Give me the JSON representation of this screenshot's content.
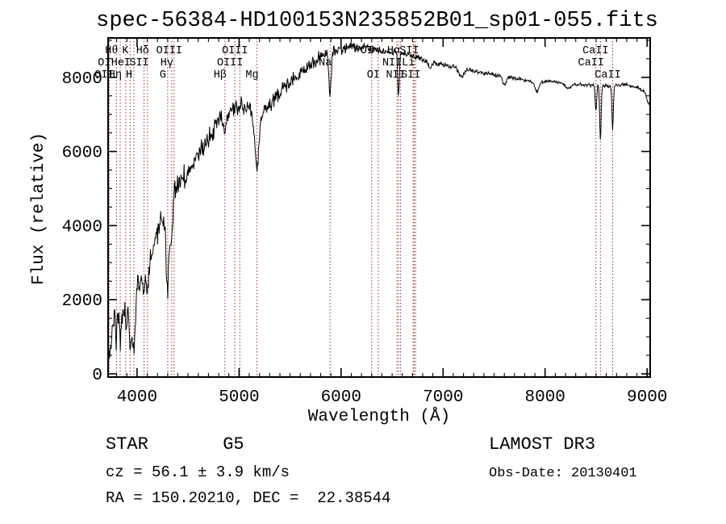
{
  "title": "spec-56384-HD100153N235852B01_sp01-055.fits",
  "annotations": {
    "class_label": "STAR       G5",
    "survey": "LAMOST DR3",
    "cz": "cz = 56.1 ± 3.9 km/s",
    "obs_date": "Obs-Date: 20130401",
    "radec": "RA = 150.20210, DEC =  22.38544"
  },
  "chart_data": {
    "type": "line",
    "title": "spec-56384-HD100153N235852B01_sp01-055.fits",
    "xlabel": "Wavelength (Å)",
    "ylabel": "Flux (relative)",
    "xlim": [
      3716,
      9030
    ],
    "ylim": [
      -87,
      9063
    ],
    "xticks": [
      4000,
      5000,
      6000,
      7000,
      8000,
      9000
    ],
    "yticks": [
      0,
      2000,
      4000,
      6000,
      8000
    ],
    "x_minor_step": 100,
    "y_minor_step": 500,
    "grid": false,
    "line_color": "#000000",
    "marker_line_color": "#993333",
    "spectral_lines": [
      {
        "label": "OI",
        "wavelength": 3727,
        "row": 2
      },
      {
        "label": "OII",
        "wavelength": 3727,
        "row": 3
      },
      {
        "label": "Hθ",
        "wavelength": 3798,
        "row": 1
      },
      {
        "label": "Hη",
        "wavelength": 3835,
        "row": 3
      },
      {
        "label": "HeI",
        "wavelength": 3889,
        "row": 2
      },
      {
        "label": "K",
        "wavelength": 3933,
        "row": 1
      },
      {
        "label": "H",
        "wavelength": 3969,
        "row": 3
      },
      {
        "label": "SII",
        "wavelength": 4068,
        "row": 2
      },
      {
        "label": "Hδ",
        "wavelength": 4102,
        "row": 1
      },
      {
        "label": "G",
        "wavelength": 4300,
        "row": 3
      },
      {
        "label": "Hγ",
        "wavelength": 4340,
        "row": 2
      },
      {
        "label": "OIII",
        "wavelength": 4363,
        "row": 1
      },
      {
        "label": "Hβ",
        "wavelength": 4861,
        "row": 3
      },
      {
        "label": "OIII",
        "wavelength": 4959,
        "row": 2
      },
      {
        "label": "OIII",
        "wavelength": 5007,
        "row": 1
      },
      {
        "label": "Mg",
        "wavelength": 5175,
        "row": 3
      },
      {
        "label": "Na",
        "wavelength": 5892,
        "row": 2
      },
      {
        "label": "OI",
        "wavelength": 6300,
        "row": 1
      },
      {
        "label": "OI",
        "wavelength": 6364,
        "row": 3
      },
      {
        "label": "NII",
        "wavelength": 6548,
        "row": 2
      },
      {
        "label": "Hα",
        "wavelength": 6563,
        "row": 1
      },
      {
        "label": "NII",
        "wavelength": 6583,
        "row": 3
      },
      {
        "label": "Li",
        "wavelength": 6707,
        "row": 2
      },
      {
        "label": "SII",
        "wavelength": 6716,
        "row": 1
      },
      {
        "label": "SII",
        "wavelength": 6731,
        "row": 3
      },
      {
        "label": "CaII",
        "wavelength": 8498,
        "row": 2
      },
      {
        "label": "CaII",
        "wavelength": 8542,
        "row": 1
      },
      {
        "label": "CaII",
        "wavelength": 8662,
        "row": 3
      }
    ],
    "continuum": [
      [
        3716,
        950
      ],
      [
        3740,
        1150
      ],
      [
        3770,
        1600
      ],
      [
        3800,
        1850
      ],
      [
        3840,
        1600
      ],
      [
        3880,
        1900
      ],
      [
        3920,
        1750
      ],
      [
        3960,
        1600
      ],
      [
        4000,
        2350
      ],
      [
        4060,
        2700
      ],
      [
        4120,
        3000
      ],
      [
        4180,
        3600
      ],
      [
        4240,
        4200
      ],
      [
        4300,
        4550
      ],
      [
        4360,
        4900
      ],
      [
        4420,
        5150
      ],
      [
        4500,
        5450
      ],
      [
        4600,
        5850
      ],
      [
        4700,
        6350
      ],
      [
        4800,
        6800
      ],
      [
        4900,
        7050
      ],
      [
        5000,
        7250
      ],
      [
        5080,
        7150
      ],
      [
        5160,
        6950
      ],
      [
        5240,
        7050
      ],
      [
        5320,
        7300
      ],
      [
        5400,
        7600
      ],
      [
        5500,
        7900
      ],
      [
        5600,
        8100
      ],
      [
        5700,
        8300
      ],
      [
        5800,
        8550
      ],
      [
        5900,
        8680
      ],
      [
        6000,
        8760
      ],
      [
        6100,
        8800
      ],
      [
        6250,
        8800
      ],
      [
        6400,
        8720
      ],
      [
        6550,
        8660
      ],
      [
        6700,
        8580
      ],
      [
        6850,
        8460
      ],
      [
        7000,
        8330
      ],
      [
        7150,
        8260
      ],
      [
        7300,
        8160
      ],
      [
        7450,
        8100
      ],
      [
        7600,
        8020
      ],
      [
        7750,
        7950
      ],
      [
        7900,
        7870
      ],
      [
        8050,
        7900
      ],
      [
        8200,
        7830
      ],
      [
        8350,
        7800
      ],
      [
        8500,
        7790
      ],
      [
        8650,
        7760
      ],
      [
        8800,
        7810
      ],
      [
        8900,
        7720
      ],
      [
        8960,
        7640
      ],
      [
        9030,
        7420
      ]
    ],
    "absorption_dips": [
      [
        3727,
        650,
        14
      ],
      [
        3798,
        750,
        9
      ],
      [
        3835,
        850,
        9
      ],
      [
        3889,
        550,
        9
      ],
      [
        3933,
        1050,
        11
      ],
      [
        3969,
        1050,
        11
      ],
      [
        4068,
        500,
        9
      ],
      [
        4102,
        850,
        11
      ],
      [
        4300,
        2150,
        16
      ],
      [
        4340,
        1100,
        11
      ],
      [
        4861,
        550,
        11
      ],
      [
        5175,
        1500,
        18
      ],
      [
        5892,
        1150,
        11
      ],
      [
        6563,
        1150,
        8
      ],
      [
        6870,
        260,
        14
      ],
      [
        7180,
        220,
        24
      ],
      [
        7600,
        230,
        16
      ],
      [
        7920,
        260,
        20
      ],
      [
        8230,
        120,
        25
      ],
      [
        8498,
        700,
        7
      ],
      [
        8542,
        1480,
        7
      ],
      [
        8662,
        1160,
        7
      ],
      [
        9015,
        180,
        15
      ]
    ],
    "noise_profile": [
      [
        3716,
        520
      ],
      [
        3900,
        500
      ],
      [
        4100,
        480
      ],
      [
        4300,
        430
      ],
      [
        4500,
        350
      ],
      [
        4700,
        330
      ],
      [
        4900,
        300
      ],
      [
        5100,
        280
      ],
      [
        5300,
        260
      ],
      [
        5500,
        240
      ],
      [
        5700,
        230
      ],
      [
        5900,
        230
      ],
      [
        6050,
        210
      ],
      [
        6200,
        140
      ],
      [
        6400,
        120
      ],
      [
        6600,
        110
      ],
      [
        6800,
        100
      ],
      [
        7000,
        85
      ],
      [
        7300,
        70
      ],
      [
        7600,
        60
      ],
      [
        8000,
        55
      ],
      [
        8400,
        60
      ],
      [
        8800,
        60
      ],
      [
        9030,
        60
      ]
    ]
  }
}
